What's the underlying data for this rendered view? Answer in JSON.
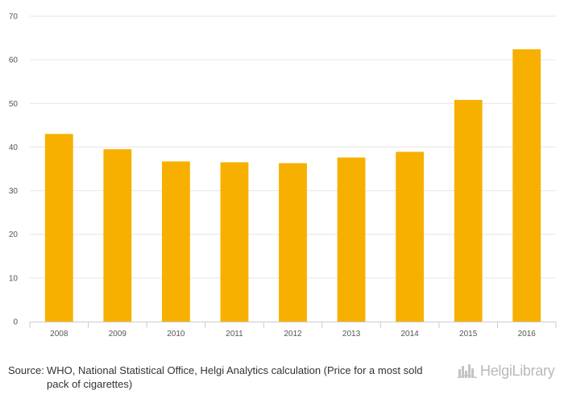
{
  "chart_data": {
    "type": "bar",
    "categories": [
      "2008",
      "2009",
      "2010",
      "2011",
      "2012",
      "2013",
      "2014",
      "2015",
      "2016"
    ],
    "values": [
      43.0,
      39.5,
      36.7,
      36.5,
      36.3,
      37.6,
      38.9,
      50.8,
      62.4
    ],
    "ylim": [
      0,
      70
    ],
    "yticks": [
      0,
      10,
      20,
      30,
      40,
      50,
      60,
      70
    ],
    "grid": true,
    "bar_color": "#f7b000",
    "title": "",
    "xlabel": "",
    "ylabel": ""
  },
  "footer": {
    "source_label": "Source:",
    "source_text": "WHO, National Statistical Office, Helgi Analytics calculation (Price for a most sold pack of cigarettes)",
    "logo_text": "HelgiLibrary",
    "logo_icon": "helgi-library-icon"
  }
}
